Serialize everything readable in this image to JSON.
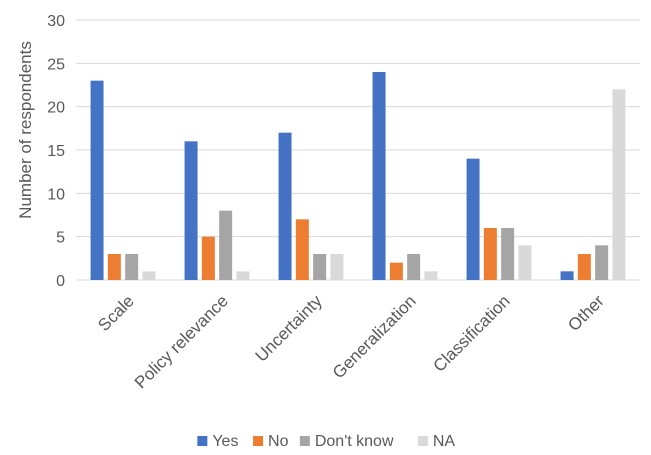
{
  "chart_data": {
    "type": "bar",
    "title": "",
    "xlabel": "",
    "ylabel": "Number of respondents",
    "ylim": [
      0,
      30
    ],
    "yticks": [
      0,
      5,
      10,
      15,
      20,
      25,
      30
    ],
    "categories": [
      "Scale",
      "Policy relevance",
      "Uncertainty",
      "Generalization",
      "Classification",
      "Other"
    ],
    "series": [
      {
        "name": "Yes",
        "color": "#4472c4",
        "values": [
          23,
          16,
          17,
          24,
          14,
          1
        ]
      },
      {
        "name": "No",
        "color": "#ed7d31",
        "values": [
          3,
          5,
          7,
          2,
          6,
          3
        ]
      },
      {
        "name": "Don't know",
        "color": "#a5a5a5",
        "values": [
          3,
          8,
          3,
          3,
          6,
          4
        ]
      },
      {
        "name": "NA",
        "color": "#d9d9d9",
        "values": [
          1,
          1,
          3,
          1,
          4,
          22
        ]
      }
    ],
    "grid": true,
    "legend_position": "bottom"
  }
}
